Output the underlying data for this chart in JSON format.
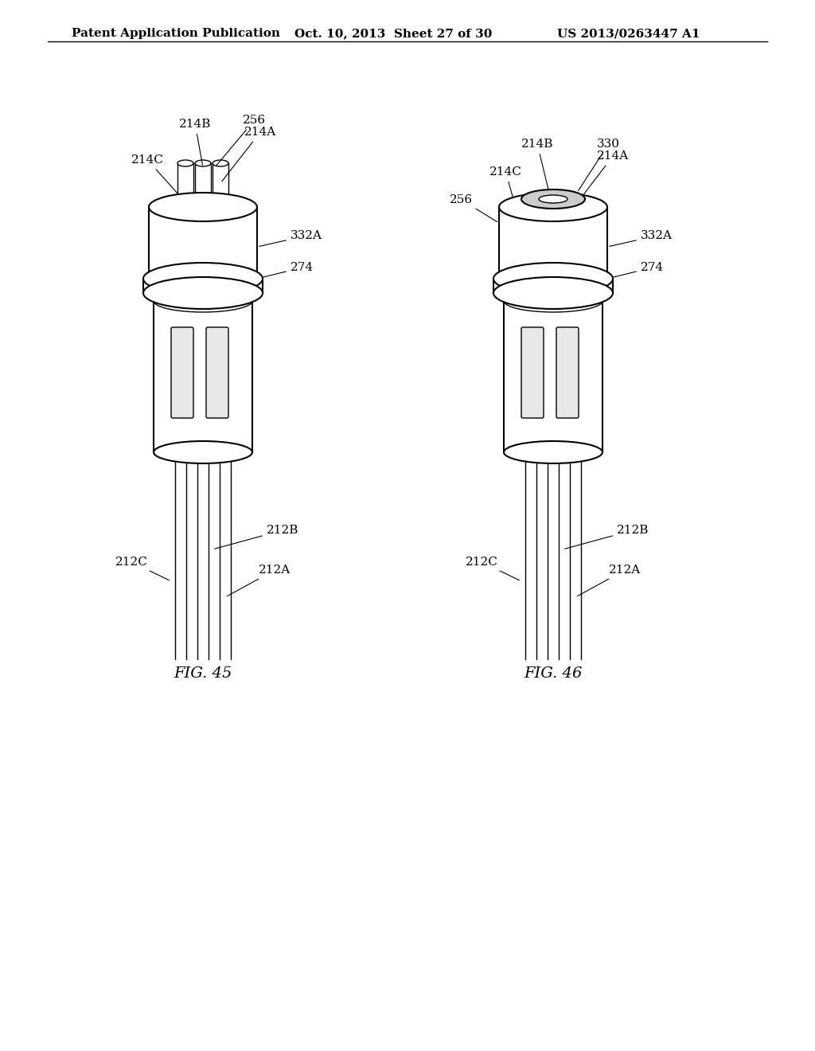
{
  "header_left": "Patent Application Publication",
  "header_mid": "Oct. 10, 2013  Sheet 27 of 30",
  "header_right": "US 2013/0263447 A1",
  "fig45_label": "FIG. 45",
  "fig46_label": "FIG. 46",
  "bg_color": "#ffffff",
  "line_color": "#000000",
  "label_color": "#000000",
  "header_fontsize": 11,
  "label_fontsize": 12,
  "ref_fontsize": 11
}
